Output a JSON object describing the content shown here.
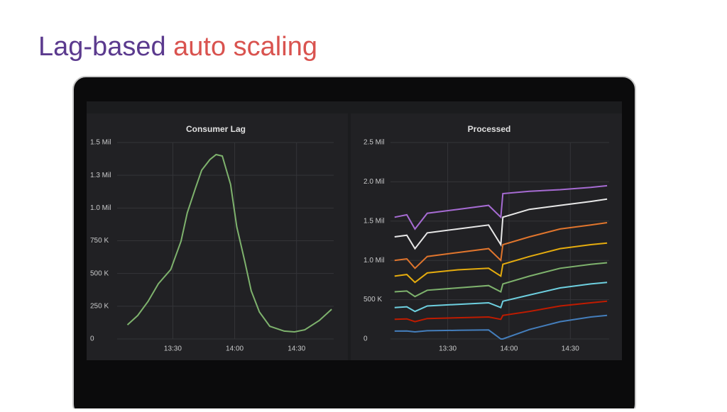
{
  "slide": {
    "title": {
      "lead": "Lag-based",
      "rest": "auto scaling"
    }
  },
  "chart_data": [
    {
      "type": "line",
      "title": "Consumer Lag",
      "color": "#7eb26d",
      "grid": true,
      "x": [
        "13:08",
        "13:13",
        "13:18",
        "13:23",
        "13:29",
        "13:34",
        "13:37",
        "13:41",
        "13:44",
        "13:48",
        "13:51",
        "13:54",
        "13:58",
        "14:01",
        "14:05",
        "14:08",
        "14:12",
        "14:17",
        "14:24",
        "14:29",
        "14:34",
        "14:41",
        "14:47"
      ],
      "values": [
        108000,
        179000,
        287000,
        422000,
        530000,
        747000,
        964000,
        1153000,
        1289000,
        1370000,
        1408000,
        1397000,
        1180000,
        856000,
        585000,
        368000,
        206000,
        97000,
        60000,
        54000,
        70000,
        141000,
        227000
      ],
      "xlim": [
        "13:03",
        "14:48"
      ],
      "xticks": [
        "13:30",
        "14:00",
        "14:30"
      ],
      "ylim": [
        0,
        1500000
      ],
      "yticks": [
        0,
        {
          "value": 250000,
          "label": "250 K"
        },
        {
          "value": 500000,
          "label": "500 K"
        },
        {
          "value": 750000,
          "label": "750 K"
        },
        {
          "value": 1000000,
          "label": "1.0 Mil"
        },
        {
          "value": 1250000,
          "label": "1.3 Mil"
        },
        {
          "value": 1500000,
          "label": "1.5 Mil"
        }
      ]
    },
    {
      "type": "line",
      "title": "Processed",
      "grid": true,
      "x": [
        "13:04",
        "13:10",
        "13:14",
        "13:20",
        "13:35",
        "13:50",
        "13:56",
        "13:57",
        "14:10",
        "14:25",
        "14:40",
        "14:48"
      ],
      "series": [
        {
          "color": "#a66bd3",
          "values": [
            1550000,
            1580000,
            1400000,
            1600000,
            1650000,
            1700000,
            1550000,
            1850000,
            1880000,
            1900000,
            1930000,
            1950000
          ]
        },
        {
          "color": "#e8e8e8",
          "values": [
            1300000,
            1320000,
            1150000,
            1350000,
            1400000,
            1450000,
            1200000,
            1550000,
            1650000,
            1700000,
            1750000,
            1780000
          ]
        },
        {
          "color": "#e0752d",
          "values": [
            1000000,
            1020000,
            900000,
            1050000,
            1100000,
            1150000,
            1000000,
            1200000,
            1300000,
            1400000,
            1450000,
            1480000
          ]
        },
        {
          "color": "#e5ac0e",
          "values": [
            800000,
            820000,
            720000,
            840000,
            880000,
            900000,
            800000,
            950000,
            1050000,
            1150000,
            1200000,
            1220000
          ]
        },
        {
          "color": "#7eb26d",
          "values": [
            600000,
            610000,
            540000,
            620000,
            650000,
            680000,
            600000,
            700000,
            800000,
            900000,
            950000,
            970000
          ]
        },
        {
          "color": "#6ed0e0",
          "values": [
            400000,
            410000,
            350000,
            420000,
            440000,
            460000,
            400000,
            480000,
            560000,
            650000,
            700000,
            720000
          ]
        },
        {
          "color": "#bf1b00",
          "values": [
            250000,
            255000,
            220000,
            260000,
            270000,
            280000,
            250000,
            300000,
            350000,
            420000,
            460000,
            480000
          ]
        },
        {
          "color": "#447ebc",
          "values": [
            100000,
            102000,
            90000,
            105000,
            110000,
            115000,
            0,
            0,
            120000,
            220000,
            280000,
            300000
          ]
        }
      ],
      "xlim": [
        "13:02",
        "14:49"
      ],
      "xticks": [
        "13:30",
        "14:00",
        "14:30"
      ],
      "ylim": [
        0,
        2500000
      ],
      "yticks": [
        0,
        {
          "value": 500000,
          "label": "500 K"
        },
        {
          "value": 1000000,
          "label": "1.0 Mil"
        },
        {
          "value": 1500000,
          "label": "1.5 Mil"
        },
        {
          "value": 2000000,
          "label": "2.0 Mil"
        },
        {
          "value": 2500000,
          "label": "2.5 Mil"
        }
      ]
    }
  ]
}
